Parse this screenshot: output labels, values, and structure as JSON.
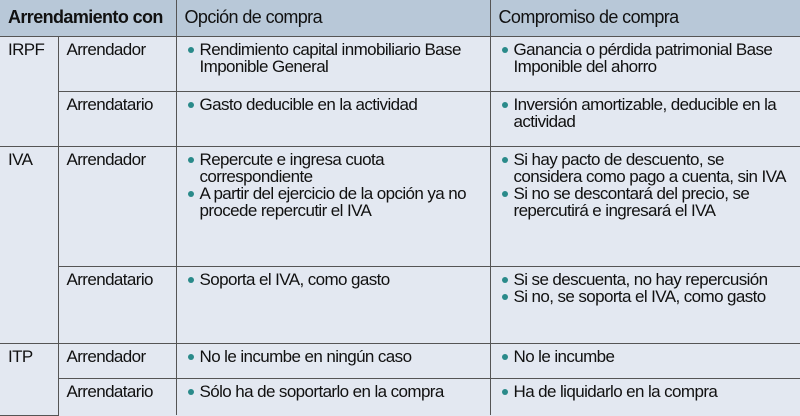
{
  "header": {
    "col1": "Arrendamiento con",
    "col2": "Opción de compra",
    "col3": "Compromiso de compra"
  },
  "bullet_color": "#2a8a8a",
  "groups": [
    {
      "tax": "IRPF",
      "rows": [
        {
          "role": "Arrendador",
          "opcion": [
            "Rendimiento capital inmobiliario Base Imponible General"
          ],
          "compromiso": [
            "Ganancia o pérdida patrimonial Base Imponible del ahorro"
          ]
        },
        {
          "role": "Arrendatario",
          "opcion": [
            "Gasto deducible en la actividad"
          ],
          "compromiso": [
            "Inversión amortizable, deducible en la actividad"
          ]
        }
      ]
    },
    {
      "tax": "IVA",
      "rows": [
        {
          "role": "Arrendador",
          "opcion": [
            "Repercute e ingresa cuota correspondiente",
            "A partir del ejercicio de la opción ya no procede repercutir el IVA"
          ],
          "compromiso": [
            "Si hay pacto de descuento, se considera como pago a cuenta, sin IVA",
            "Si no se descontará del precio, se repercutirá e ingresará el IVA"
          ]
        },
        {
          "role": "Arrendatario",
          "opcion": [
            "Soporta el IVA, como gasto"
          ],
          "compromiso": [
            "Si se descuenta, no hay repercusión",
            "Si no, se soporta el IVA, como gasto"
          ]
        }
      ]
    },
    {
      "tax": "ITP",
      "rows": [
        {
          "role": "Arrendador",
          "opcion": [
            "No le incumbe en ningún caso"
          ],
          "compromiso": [
            "No le incumbe"
          ]
        },
        {
          "role": "Arrendatario",
          "opcion": [
            "Sólo ha de soportarlo en la compra"
          ],
          "compromiso": [
            "Ha de liquidarlo en la compra"
          ]
        }
      ]
    }
  ]
}
